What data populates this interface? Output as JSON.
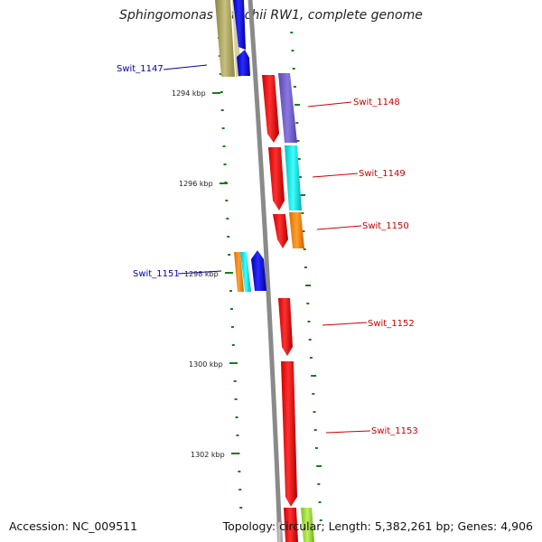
{
  "title": "Sphingomonas wittichii RW1, complete genome",
  "footer": {
    "accession": "Accession: NC_009511",
    "summary": "Topology: circular; Length: 5,382,261 bp; Genes: 4,906"
  },
  "ticks": [
    "1294 kbp",
    "1296 kbp",
    "1298 kbp",
    "1300 kbp",
    "1302 kbp"
  ],
  "genes": [
    {
      "name": "Swit_1147",
      "strand": "reverse",
      "color": "#0000cc"
    },
    {
      "name": "Swit_1148",
      "strand": "forward",
      "color": "#cc0000"
    },
    {
      "name": "Swit_1149",
      "strand": "forward",
      "color": "#cc0000"
    },
    {
      "name": "Swit_1150",
      "strand": "forward",
      "color": "#cc0000"
    },
    {
      "name": "Swit_1151",
      "strand": "reverse",
      "color": "#0000cc"
    },
    {
      "name": "Swit_1152",
      "strand": "forward",
      "color": "#cc0000"
    },
    {
      "name": "Swit_1153",
      "strand": "forward",
      "color": "#cc0000"
    }
  ],
  "colors": {
    "backbone": "#8a8a8a",
    "tick": "#1e7a1e",
    "forward_cds": "#ff0000",
    "reverse_cds": "#0000ff",
    "olive_feature": "#b0a860",
    "purple_feature": "#7060c8",
    "cyan_feature": "#00e0e0",
    "orange_feature": "#ff8c00",
    "green_feature": "#99dd33"
  }
}
